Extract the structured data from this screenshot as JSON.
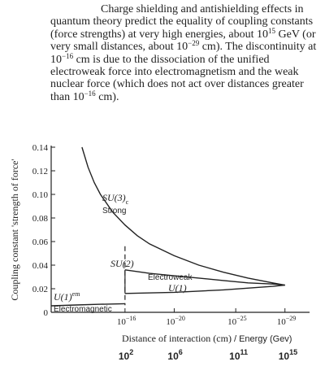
{
  "caption": {
    "p1": "Charge shielding and antishielding effects in quantum theory predict the equality of coupling constants (force strengths) at very high energies, about 10",
    "p1_exp": "15",
    "p2": " GeV (or very small distances, about 10",
    "p2_exp": "−29",
    "p3": " cm). The discontinuity at 10",
    "p3_exp": "−16",
    "p4": " cm is due to the dissociation of the unified electroweak force into electromagnetism and the weak nuclear force (which does not act over distances greater than 10",
    "p4_exp": "−16",
    "p5": " cm)."
  },
  "chart_data": {
    "type": "line",
    "ylabel": "Coupling constant 'strength of force'",
    "xlabel": "Distance of interaction (cm)",
    "xlabel_extra": "/ Energy (Gev)",
    "ylim": [
      0,
      0.14
    ],
    "yticks": [
      {
        "value": 0,
        "label": "0"
      },
      {
        "value": 0.02,
        "label": "0.02"
      },
      {
        "value": 0.04,
        "label": "0.04"
      },
      {
        "value": 0.06,
        "label": "0.06"
      },
      {
        "value": 0.08,
        "label": "0.08"
      },
      {
        "value": 0.1,
        "label": "0.10"
      },
      {
        "value": 0.12,
        "label": "0.12"
      },
      {
        "value": 0.14,
        "label": "0.14"
      }
    ],
    "xscale": "log (distance exponent)",
    "xlim": [
      -10,
      -31
    ],
    "xticks": [
      {
        "value": -16,
        "base": "10",
        "exp": "−16"
      },
      {
        "value": -20,
        "base": "10",
        "exp": "−20"
      },
      {
        "value": -25,
        "base": "10",
        "exp": "−25"
      },
      {
        "value": -29,
        "base": "10",
        "exp": "−29"
      }
    ],
    "energy_ticks": [
      {
        "value": -16,
        "base": "10",
        "exp": "2"
      },
      {
        "value": -20,
        "base": "10",
        "exp": "6"
      },
      {
        "value": -25,
        "base": "10",
        "exp": "11"
      },
      {
        "value": -29,
        "base": "10",
        "exp": "15"
      }
    ],
    "discontinuity_x": -16,
    "series": [
      {
        "name": "SU(3)c Strong",
        "x": [
          -12.5,
          -13,
          -13.5,
          -14,
          -15,
          -16,
          -17,
          -18,
          -20,
          -22,
          -24,
          -26,
          -28,
          -29
        ],
        "y": [
          0.14,
          0.123,
          0.11,
          0.1,
          0.085,
          0.074,
          0.065,
          0.058,
          0.048,
          0.04,
          0.034,
          0.029,
          0.025,
          0.023
        ]
      },
      {
        "name": "SU(2) Electroweak",
        "x": [
          -16,
          -18,
          -20,
          -22,
          -24,
          -26,
          -28,
          -29
        ],
        "y": [
          0.036,
          0.033,
          0.031,
          0.029,
          0.027,
          0.025,
          0.024,
          0.023
        ]
      },
      {
        "name": "U(1)",
        "x": [
          -16,
          -20,
          -24,
          -28,
          -29
        ],
        "y": [
          0.016,
          0.017,
          0.019,
          0.022,
          0.023
        ]
      },
      {
        "name": "U(1)em Electromagnetic",
        "x": [
          -10,
          -12,
          -14,
          -16
        ],
        "y": [
          0.0055,
          0.0062,
          0.0068,
          0.0073
        ]
      }
    ],
    "labels": {
      "su3": "SU(3)",
      "su3_sub": "c",
      "strong": "Strong",
      "su2": "SU(2)",
      "electroweak": "Electroweak",
      "u1": "U(1)",
      "u1em": "U(1)",
      "u1em_sup": "em",
      "electromagnetic": "Electromagnetic"
    }
  }
}
